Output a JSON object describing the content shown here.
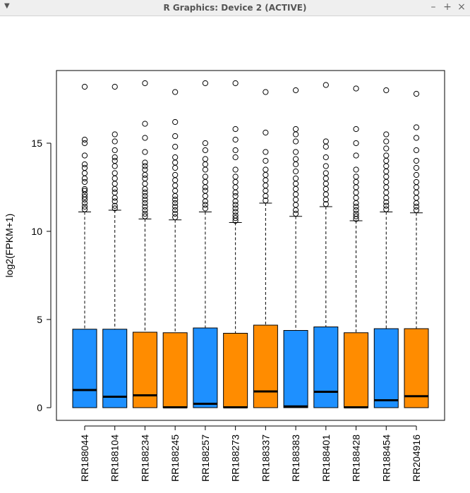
{
  "window": {
    "title": "R Graphics: Device 2 (ACTIVE)",
    "menu_icon": "chevron-down-icon",
    "minimize_label": "–",
    "maximize_label": "+",
    "close_label": "×"
  },
  "chart_data": {
    "type": "boxplot",
    "ylabel": "log2(FPKM+1)",
    "xlabel": "",
    "ylim": [
      -0.6,
      19.1
    ],
    "yticks": [
      0,
      5,
      10,
      15
    ],
    "colors": {
      "blue": "#1e90ff",
      "orange": "#ff8c00"
    },
    "boxes": [
      {
        "label": "RR188044",
        "color": "blue",
        "min": 0,
        "q1": 0,
        "median": 1.0,
        "q3": 4.45,
        "whisker_high": 11.1,
        "outliers": [
          11.25,
          11.4,
          11.6,
          11.8,
          11.95,
          12.1,
          12.3,
          12.4,
          12.8,
          13.0,
          13.3,
          13.6,
          13.8,
          14.3,
          15.0,
          15.2,
          18.2
        ]
      },
      {
        "label": "RR188104",
        "color": "blue",
        "min": 0,
        "q1": 0,
        "median": 0.62,
        "q3": 4.45,
        "whisker_high": 11.2,
        "outliers": [
          11.3,
          11.45,
          11.7,
          11.9,
          12.2,
          12.4,
          12.7,
          13.0,
          13.3,
          13.7,
          14.0,
          14.2,
          14.6,
          15.1,
          15.5,
          18.2
        ]
      },
      {
        "label": "RR188234",
        "color": "orange",
        "min": 0,
        "q1": 0,
        "median": 0.7,
        "q3": 4.28,
        "whisker_high": 10.7,
        "outliers": [
          10.85,
          11.0,
          11.2,
          11.4,
          11.6,
          11.8,
          12.0,
          12.2,
          12.4,
          12.7,
          13.0,
          13.2,
          13.5,
          13.7,
          13.9,
          14.5,
          15.3,
          16.1,
          18.4
        ]
      },
      {
        "label": "RR188245",
        "color": "orange",
        "min": 0,
        "q1": 0,
        "median": 0.02,
        "q3": 4.25,
        "whisker_high": 10.65,
        "outliers": [
          10.8,
          11.0,
          11.2,
          11.4,
          11.6,
          11.8,
          12.0,
          12.3,
          12.6,
          12.9,
          13.2,
          13.6,
          13.9,
          14.2,
          14.8,
          15.4,
          16.2,
          17.9
        ]
      },
      {
        "label": "RR188257",
        "color": "blue",
        "min": 0,
        "q1": 0,
        "median": 0.22,
        "q3": 4.52,
        "whisker_high": 11.1,
        "outliers": [
          11.3,
          11.5,
          11.7,
          12.0,
          12.3,
          12.5,
          12.8,
          13.1,
          13.5,
          13.8,
          14.1,
          14.6,
          15.0,
          18.4
        ]
      },
      {
        "label": "RR188273",
        "color": "orange",
        "min": 0,
        "q1": 0,
        "median": 0.02,
        "q3": 4.22,
        "whisker_high": 10.5,
        "outliers": [
          10.6,
          10.75,
          10.9,
          11.1,
          11.3,
          11.5,
          11.7,
          12.0,
          12.2,
          12.5,
          12.8,
          13.1,
          13.5,
          14.2,
          14.6,
          15.2,
          15.8,
          18.4
        ]
      },
      {
        "label": "RR188337",
        "color": "orange",
        "min": 0,
        "q1": 0,
        "median": 0.92,
        "q3": 4.68,
        "whisker_high": 11.6,
        "outliers": [
          11.75,
          12.0,
          12.3,
          12.6,
          12.9,
          13.2,
          13.5,
          14.0,
          14.5,
          15.6,
          17.9
        ]
      },
      {
        "label": "RR188383",
        "color": "blue",
        "min": 0,
        "q1": 0,
        "median": 0.07,
        "q3": 4.38,
        "whisker_high": 10.85,
        "outliers": [
          11.0,
          11.2,
          11.5,
          11.8,
          12.1,
          12.4,
          12.7,
          13.0,
          13.4,
          13.8,
          14.1,
          14.5,
          15.1,
          15.5,
          15.8,
          18.0
        ]
      },
      {
        "label": "RR188401",
        "color": "blue",
        "min": 0,
        "q1": 0,
        "median": 0.9,
        "q3": 4.58,
        "whisker_high": 11.4,
        "outliers": [
          11.55,
          11.8,
          12.1,
          12.4,
          12.7,
          13.0,
          13.3,
          13.7,
          14.2,
          14.8,
          15.1,
          18.3
        ]
      },
      {
        "label": "RR188428",
        "color": "orange",
        "min": 0,
        "q1": 0,
        "median": 0.02,
        "q3": 4.25,
        "whisker_high": 10.6,
        "outliers": [
          10.7,
          10.85,
          11.0,
          11.2,
          11.4,
          11.6,
          11.9,
          12.2,
          12.5,
          12.8,
          13.1,
          13.5,
          14.3,
          15.0,
          15.8,
          18.1
        ]
      },
      {
        "label": "RR188454",
        "color": "blue",
        "min": 0,
        "q1": 0,
        "median": 0.42,
        "q3": 4.48,
        "whisker_high": 11.1,
        "outliers": [
          11.25,
          11.45,
          11.65,
          11.9,
          12.2,
          12.5,
          12.8,
          13.1,
          13.4,
          13.7,
          14.0,
          14.3,
          14.7,
          15.1,
          15.5,
          18.0
        ]
      },
      {
        "label": "RR204916",
        "color": "orange",
        "min": 0,
        "q1": 0,
        "median": 0.65,
        "q3": 4.48,
        "whisker_high": 11.05,
        "outliers": [
          11.2,
          11.4,
          11.6,
          11.9,
          12.2,
          12.5,
          12.8,
          13.2,
          13.6,
          14.0,
          14.6,
          15.3,
          15.9,
          17.8
        ]
      }
    ]
  }
}
